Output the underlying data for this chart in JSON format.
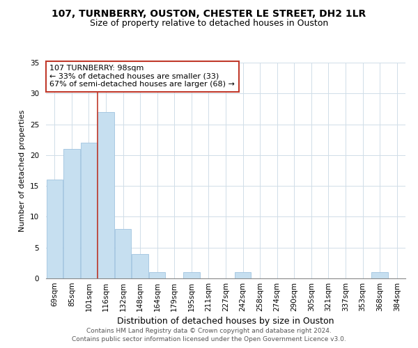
{
  "title": "107, TURNBERRY, OUSTON, CHESTER LE STREET, DH2 1LR",
  "subtitle": "Size of property relative to detached houses in Ouston",
  "xlabel": "Distribution of detached houses by size in Ouston",
  "ylabel": "Number of detached properties",
  "bar_labels": [
    "69sqm",
    "85sqm",
    "101sqm",
    "116sqm",
    "132sqm",
    "148sqm",
    "164sqm",
    "179sqm",
    "195sqm",
    "211sqm",
    "227sqm",
    "242sqm",
    "258sqm",
    "274sqm",
    "290sqm",
    "305sqm",
    "321sqm",
    "337sqm",
    "353sqm",
    "368sqm",
    "384sqm"
  ],
  "bar_values": [
    16,
    21,
    22,
    27,
    8,
    4,
    1,
    0,
    1,
    0,
    0,
    1,
    0,
    0,
    0,
    0,
    0,
    0,
    0,
    1,
    0
  ],
  "bar_color": "#c6dff0",
  "bar_edge_color": "#a0c4e0",
  "property_label": "107 TURNBERRY: 98sqm",
  "annotation_line1": "← 33% of detached houses are smaller (33)",
  "annotation_line2": "67% of semi-detached houses are larger (68) →",
  "vline_color": "#c0392b",
  "vline_x": 2.5,
  "ylim": [
    0,
    35
  ],
  "annotation_box_color": "white",
  "annotation_box_edge": "#c0392b",
  "footer1": "Contains HM Land Registry data © Crown copyright and database right 2024.",
  "footer2": "Contains public sector information licensed under the Open Government Licence v3.0.",
  "title_fontsize": 10,
  "subtitle_fontsize": 9,
  "xlabel_fontsize": 9,
  "ylabel_fontsize": 8,
  "tick_fontsize": 7.5,
  "annot_fontsize": 8,
  "footer_fontsize": 6.5
}
